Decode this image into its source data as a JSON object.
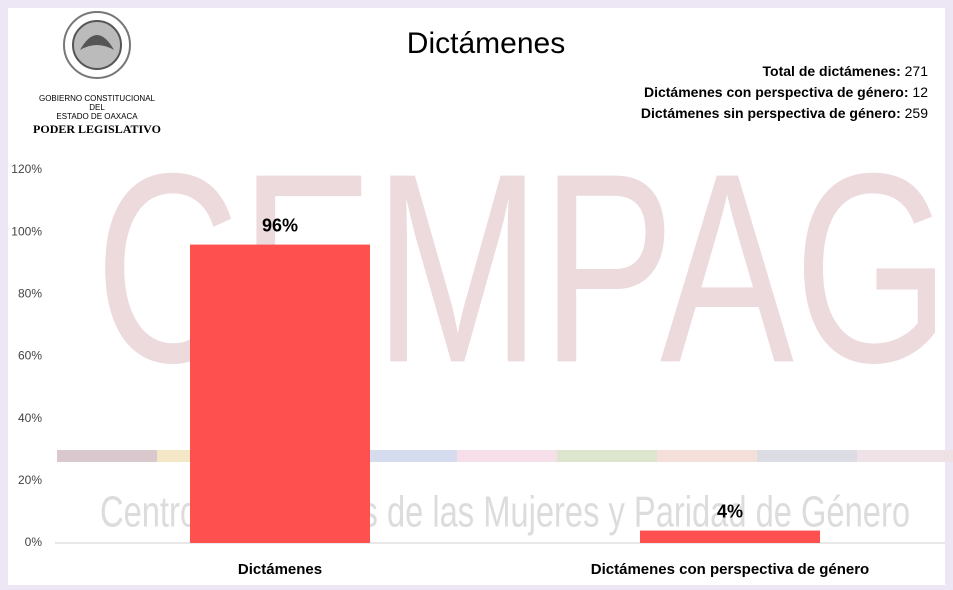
{
  "logo": {
    "lines": [
      "GOBIERNO CONSTITUCIONAL",
      "DEL",
      "ESTADO DE OAXACA"
    ],
    "name": "PODER LEGISLATIVO"
  },
  "summary": [
    {
      "label": "Total de dictámenes:",
      "value": 271
    },
    {
      "label": "Dictámenes con perspectiva de género:",
      "value": 12
    },
    {
      "label": "Dictámenes sin perspectiva de género:",
      "value": 259
    }
  ],
  "watermark": {
    "acronym": "CEMPAG",
    "name": "Centro de Estudios de las Mujeres y Paridad de Género"
  },
  "chart_data": {
    "type": "bar",
    "title": "Dictámenes",
    "categories": [
      "Dictámenes",
      "Dictámenes con perspectiva de género"
    ],
    "values": [
      96,
      4
    ],
    "value_labels": [
      "96%",
      "4%"
    ],
    "color": "#ff5050",
    "ylim": [
      0,
      120
    ],
    "yticks": [
      {
        "value": 0,
        "label": "0%"
      },
      {
        "value": 20,
        "label": "20%"
      },
      {
        "value": 40,
        "label": "40%"
      },
      {
        "value": 60,
        "label": "60%"
      },
      {
        "value": 80,
        "label": "80%"
      },
      {
        "value": 100,
        "label": "100%"
      },
      {
        "value": 120,
        "label": "120%"
      }
    ],
    "grid": false
  }
}
